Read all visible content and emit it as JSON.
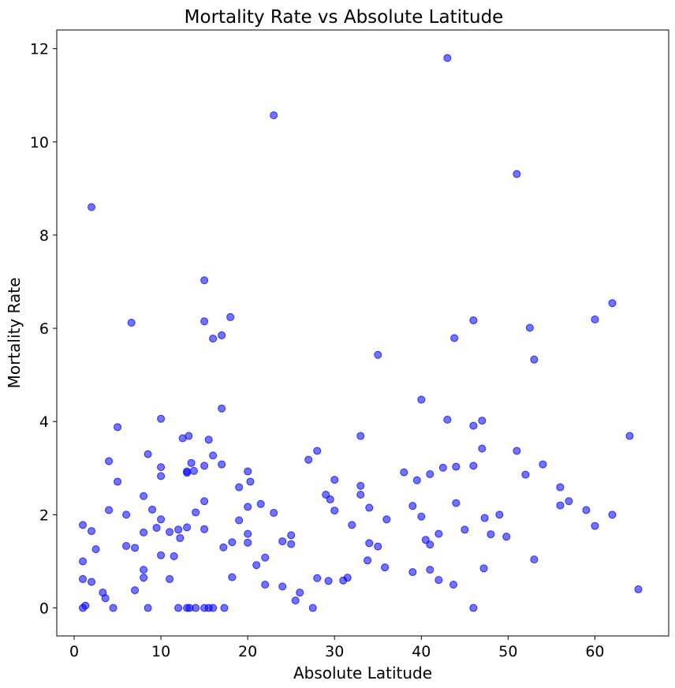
{
  "chart_data": {
    "type": "scatter",
    "title": "Mortality Rate vs Absolute Latitude",
    "xlabel": "Absolute Latitude",
    "ylabel": "Mortality Rate",
    "xlim": [
      -2,
      68.5
    ],
    "ylim": [
      -0.6,
      12.4
    ],
    "xticks": [
      0,
      10,
      20,
      30,
      40,
      50,
      60
    ],
    "yticks": [
      0,
      2,
      4,
      6,
      8,
      10,
      12
    ],
    "marker_color": "#0000ff",
    "marker_alpha": 0.55,
    "grid": false,
    "points": [
      [
        1,
        0
      ],
      [
        1.3,
        0.05
      ],
      [
        1,
        0.62
      ],
      [
        1,
        1
      ],
      [
        1,
        1.78
      ],
      [
        2,
        0.56
      ],
      [
        2,
        1.65
      ],
      [
        2.5,
        1.26
      ],
      [
        2,
        8.6
      ],
      [
        3.3,
        0.33
      ],
      [
        3.6,
        0.21
      ],
      [
        4,
        2.1
      ],
      [
        4,
        3.15
      ],
      [
        4.5,
        0
      ],
      [
        5,
        2.71
      ],
      [
        5,
        3.88
      ],
      [
        6,
        1.33
      ],
      [
        6,
        2.0
      ],
      [
        6.6,
        6.12
      ],
      [
        7,
        0.38
      ],
      [
        7,
        1.29
      ],
      [
        8,
        0.65
      ],
      [
        8,
        0.82
      ],
      [
        8,
        1.62
      ],
      [
        8,
        2.4
      ],
      [
        8.5,
        3.3
      ],
      [
        8.5,
        0
      ],
      [
        9,
        2.11
      ],
      [
        9.5,
        1.72
      ],
      [
        10,
        1.9
      ],
      [
        10,
        2.83
      ],
      [
        10,
        3.02
      ],
      [
        10,
        1.13
      ],
      [
        10,
        4.06
      ],
      [
        11,
        0.62
      ],
      [
        11,
        1.63
      ],
      [
        11.5,
        1.11
      ],
      [
        12,
        0
      ],
      [
        12,
        1.68
      ],
      [
        12.2,
        1.5
      ],
      [
        12.5,
        3.64
      ],
      [
        13,
        0
      ],
      [
        13,
        1.73
      ],
      [
        13,
        2.9
      ],
      [
        13,
        2.93
      ],
      [
        13.3,
        0
      ],
      [
        13.2,
        3.69
      ],
      [
        13.5,
        3.11
      ],
      [
        13.8,
        2.94
      ],
      [
        14,
        0
      ],
      [
        14,
        2.05
      ],
      [
        15,
        0
      ],
      [
        15,
        1.69
      ],
      [
        15,
        2.29
      ],
      [
        15,
        3.05
      ],
      [
        15,
        6.15
      ],
      [
        15,
        7.03
      ],
      [
        15.5,
        0
      ],
      [
        15.5,
        3.61
      ],
      [
        16,
        0
      ],
      [
        16,
        3.27
      ],
      [
        16,
        5.78
      ],
      [
        17,
        3.08
      ],
      [
        17,
        4.28
      ],
      [
        17,
        5.85
      ],
      [
        17.3,
        0
      ],
      [
        17.2,
        1.3
      ],
      [
        18,
        6.24
      ],
      [
        18.2,
        1.41
      ],
      [
        18.2,
        0.66
      ],
      [
        19,
        1.88
      ],
      [
        19,
        2.59
      ],
      [
        20,
        1.4
      ],
      [
        20,
        1.59
      ],
      [
        20,
        2.17
      ],
      [
        20,
        2.93
      ],
      [
        20.3,
        2.71
      ],
      [
        21,
        0.92
      ],
      [
        21.5,
        2.23
      ],
      [
        22,
        0.5
      ],
      [
        22,
        1.08
      ],
      [
        23,
        2.04
      ],
      [
        23,
        10.57
      ],
      [
        24,
        0.46
      ],
      [
        24,
        1.43
      ],
      [
        25,
        1.37
      ],
      [
        25,
        1.56
      ],
      [
        25.5,
        0.16
      ],
      [
        26,
        0.33
      ],
      [
        27,
        3.18
      ],
      [
        27.5,
        0
      ],
      [
        28,
        0.64
      ],
      [
        28,
        3.37
      ],
      [
        29,
        2.43
      ],
      [
        29.3,
        0.58
      ],
      [
        29.5,
        2.33
      ],
      [
        30,
        2.09
      ],
      [
        30,
        2.75
      ],
      [
        31,
        0.59
      ],
      [
        31.5,
        0.65
      ],
      [
        32,
        1.78
      ],
      [
        33,
        2.43
      ],
      [
        33,
        2.62
      ],
      [
        33,
        3.69
      ],
      [
        33.8,
        1.02
      ],
      [
        34,
        1.39
      ],
      [
        34,
        2.15
      ],
      [
        35,
        1.32
      ],
      [
        35,
        5.43
      ],
      [
        35.8,
        0.87
      ],
      [
        36,
        1.9
      ],
      [
        38,
        2.91
      ],
      [
        39,
        0.77
      ],
      [
        39,
        2.19
      ],
      [
        39.5,
        2.74
      ],
      [
        40,
        1.96
      ],
      [
        40,
        4.47
      ],
      [
        40.5,
        1.46
      ],
      [
        41,
        0.82
      ],
      [
        41,
        1.36
      ],
      [
        41,
        2.87
      ],
      [
        42,
        0.6
      ],
      [
        42,
        1.59
      ],
      [
        42.5,
        3.01
      ],
      [
        43,
        4.04
      ],
      [
        43,
        11.8
      ],
      [
        43.7,
        0.5
      ],
      [
        43.8,
        5.79
      ],
      [
        44,
        2.25
      ],
      [
        44,
        3.03
      ],
      [
        45,
        1.68
      ],
      [
        46,
        0
      ],
      [
        46,
        3.05
      ],
      [
        46,
        3.91
      ],
      [
        46,
        6.17
      ],
      [
        47,
        3.42
      ],
      [
        47,
        4.02
      ],
      [
        47.2,
        0.85
      ],
      [
        47.3,
        1.93
      ],
      [
        48,
        1.58
      ],
      [
        49,
        2.0
      ],
      [
        49.8,
        1.53
      ],
      [
        51,
        3.37
      ],
      [
        51,
        9.31
      ],
      [
        52,
        2.86
      ],
      [
        52.5,
        6.01
      ],
      [
        53,
        1.04
      ],
      [
        53,
        5.33
      ],
      [
        54,
        3.08
      ],
      [
        56,
        2.2
      ],
      [
        56,
        2.59
      ],
      [
        57,
        2.29
      ],
      [
        59,
        2.1
      ],
      [
        60,
        1.76
      ],
      [
        60,
        6.19
      ],
      [
        62,
        2.0
      ],
      [
        62,
        6.54
      ],
      [
        64,
        3.69
      ],
      [
        65,
        0.4
      ]
    ]
  }
}
